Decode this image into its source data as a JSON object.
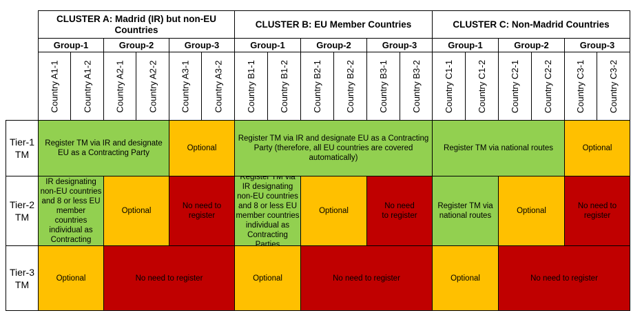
{
  "clusters": {
    "a": "CLUSTER A: Madrid (IR) but non-EU Countries",
    "b": "CLUSTER B: EU Member Countries",
    "c": "CLUSTER C: Non-Madrid  Countries"
  },
  "groups": [
    "Group-1",
    "Group-2",
    "Group-3",
    "Group-1",
    "Group-2",
    "Group-3",
    "Group-1",
    "Group-2",
    "Group-3"
  ],
  "countries": [
    "Country A1-1",
    "Country A1-2",
    "Country A2-1",
    "Country A2-2",
    "Country A3-1",
    "Country A3-2",
    "Country B1-1",
    "Country B1-2",
    "Country B2-1",
    "Country B2-2",
    "Country B3-1",
    "Country B3-2",
    "Country C1-1",
    "Country C1-2",
    "Country C2-1",
    "Country C2-2",
    "Country C3-1",
    "Country C3-2"
  ],
  "tiers": [
    "Tier-1 TM",
    "Tier-2 TM",
    "Tier-3 TM"
  ],
  "tier1": {
    "a_g12": "Register TM via IR and designate EU as a Contracting Party",
    "a_g3": "Optional",
    "b_all": "Register TM via IR and designate EU as a Contracting Party (therefore, all EU countries are covered automatically)",
    "c_g12": "Register TM via national routes",
    "c_g3": "Optional"
  },
  "tier2": {
    "a_g1": "Register TM via IR designating non-EU countries and 8 or less EU member countries individual as Contracting Parties",
    "a_g2": "Optional",
    "a_g3": "No need to register",
    "b_g1": "Register TM via IR designating non-EU countries and 8 or less EU member countries individual as Contracting Parties",
    "b_g2": "Optional",
    "b_g3": "No need to register",
    "c_g1": "Register TM via national routes",
    "c_g2": "Optional",
    "c_g3": "No need to register"
  },
  "tier3": {
    "a_g1": "Optional",
    "a_g23": "No need to register",
    "b_g1": "Optional",
    "b_g23": "No need to register",
    "c_g1": "Optional",
    "c_g23": "No need to register"
  },
  "colors": {
    "green": "#92d050",
    "orange": "#ffc000",
    "red": "#c00000"
  }
}
